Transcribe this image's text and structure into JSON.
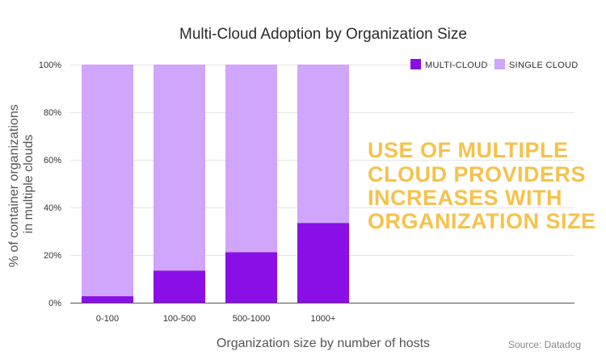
{
  "chart_data": {
    "type": "bar",
    "stacked": true,
    "title": "Multi-Cloud Adoption by Organization Size",
    "xlabel": "Organization size by number of hosts",
    "ylabel": [
      "% of container organizations",
      "in multiple clouds"
    ],
    "categories": [
      "0-100",
      "100-500",
      "500-1000",
      "1000+"
    ],
    "series": [
      {
        "name": "MULTI-CLOUD",
        "color": "#8a0ee6",
        "values": [
          2.7,
          13.5,
          21.2,
          33.5
        ]
      },
      {
        "name": "SINGLE CLOUD",
        "color": "#cfa6fb",
        "values": [
          97.3,
          86.5,
          78.8,
          66.5
        ]
      }
    ],
    "yticks": [
      "0%",
      "20%",
      "40%",
      "60%",
      "80%",
      "100%"
    ],
    "ylim": [
      0,
      100
    ],
    "grid": true,
    "legend": "top-right",
    "annotation": [
      "USE OF MULTIPLE",
      "CLOUD PROVIDERS",
      "INCREASES WITH",
      "ORGANIZATION SIZE"
    ],
    "annotation_color": "#f5c24c",
    "source": "Source: Datadog"
  }
}
